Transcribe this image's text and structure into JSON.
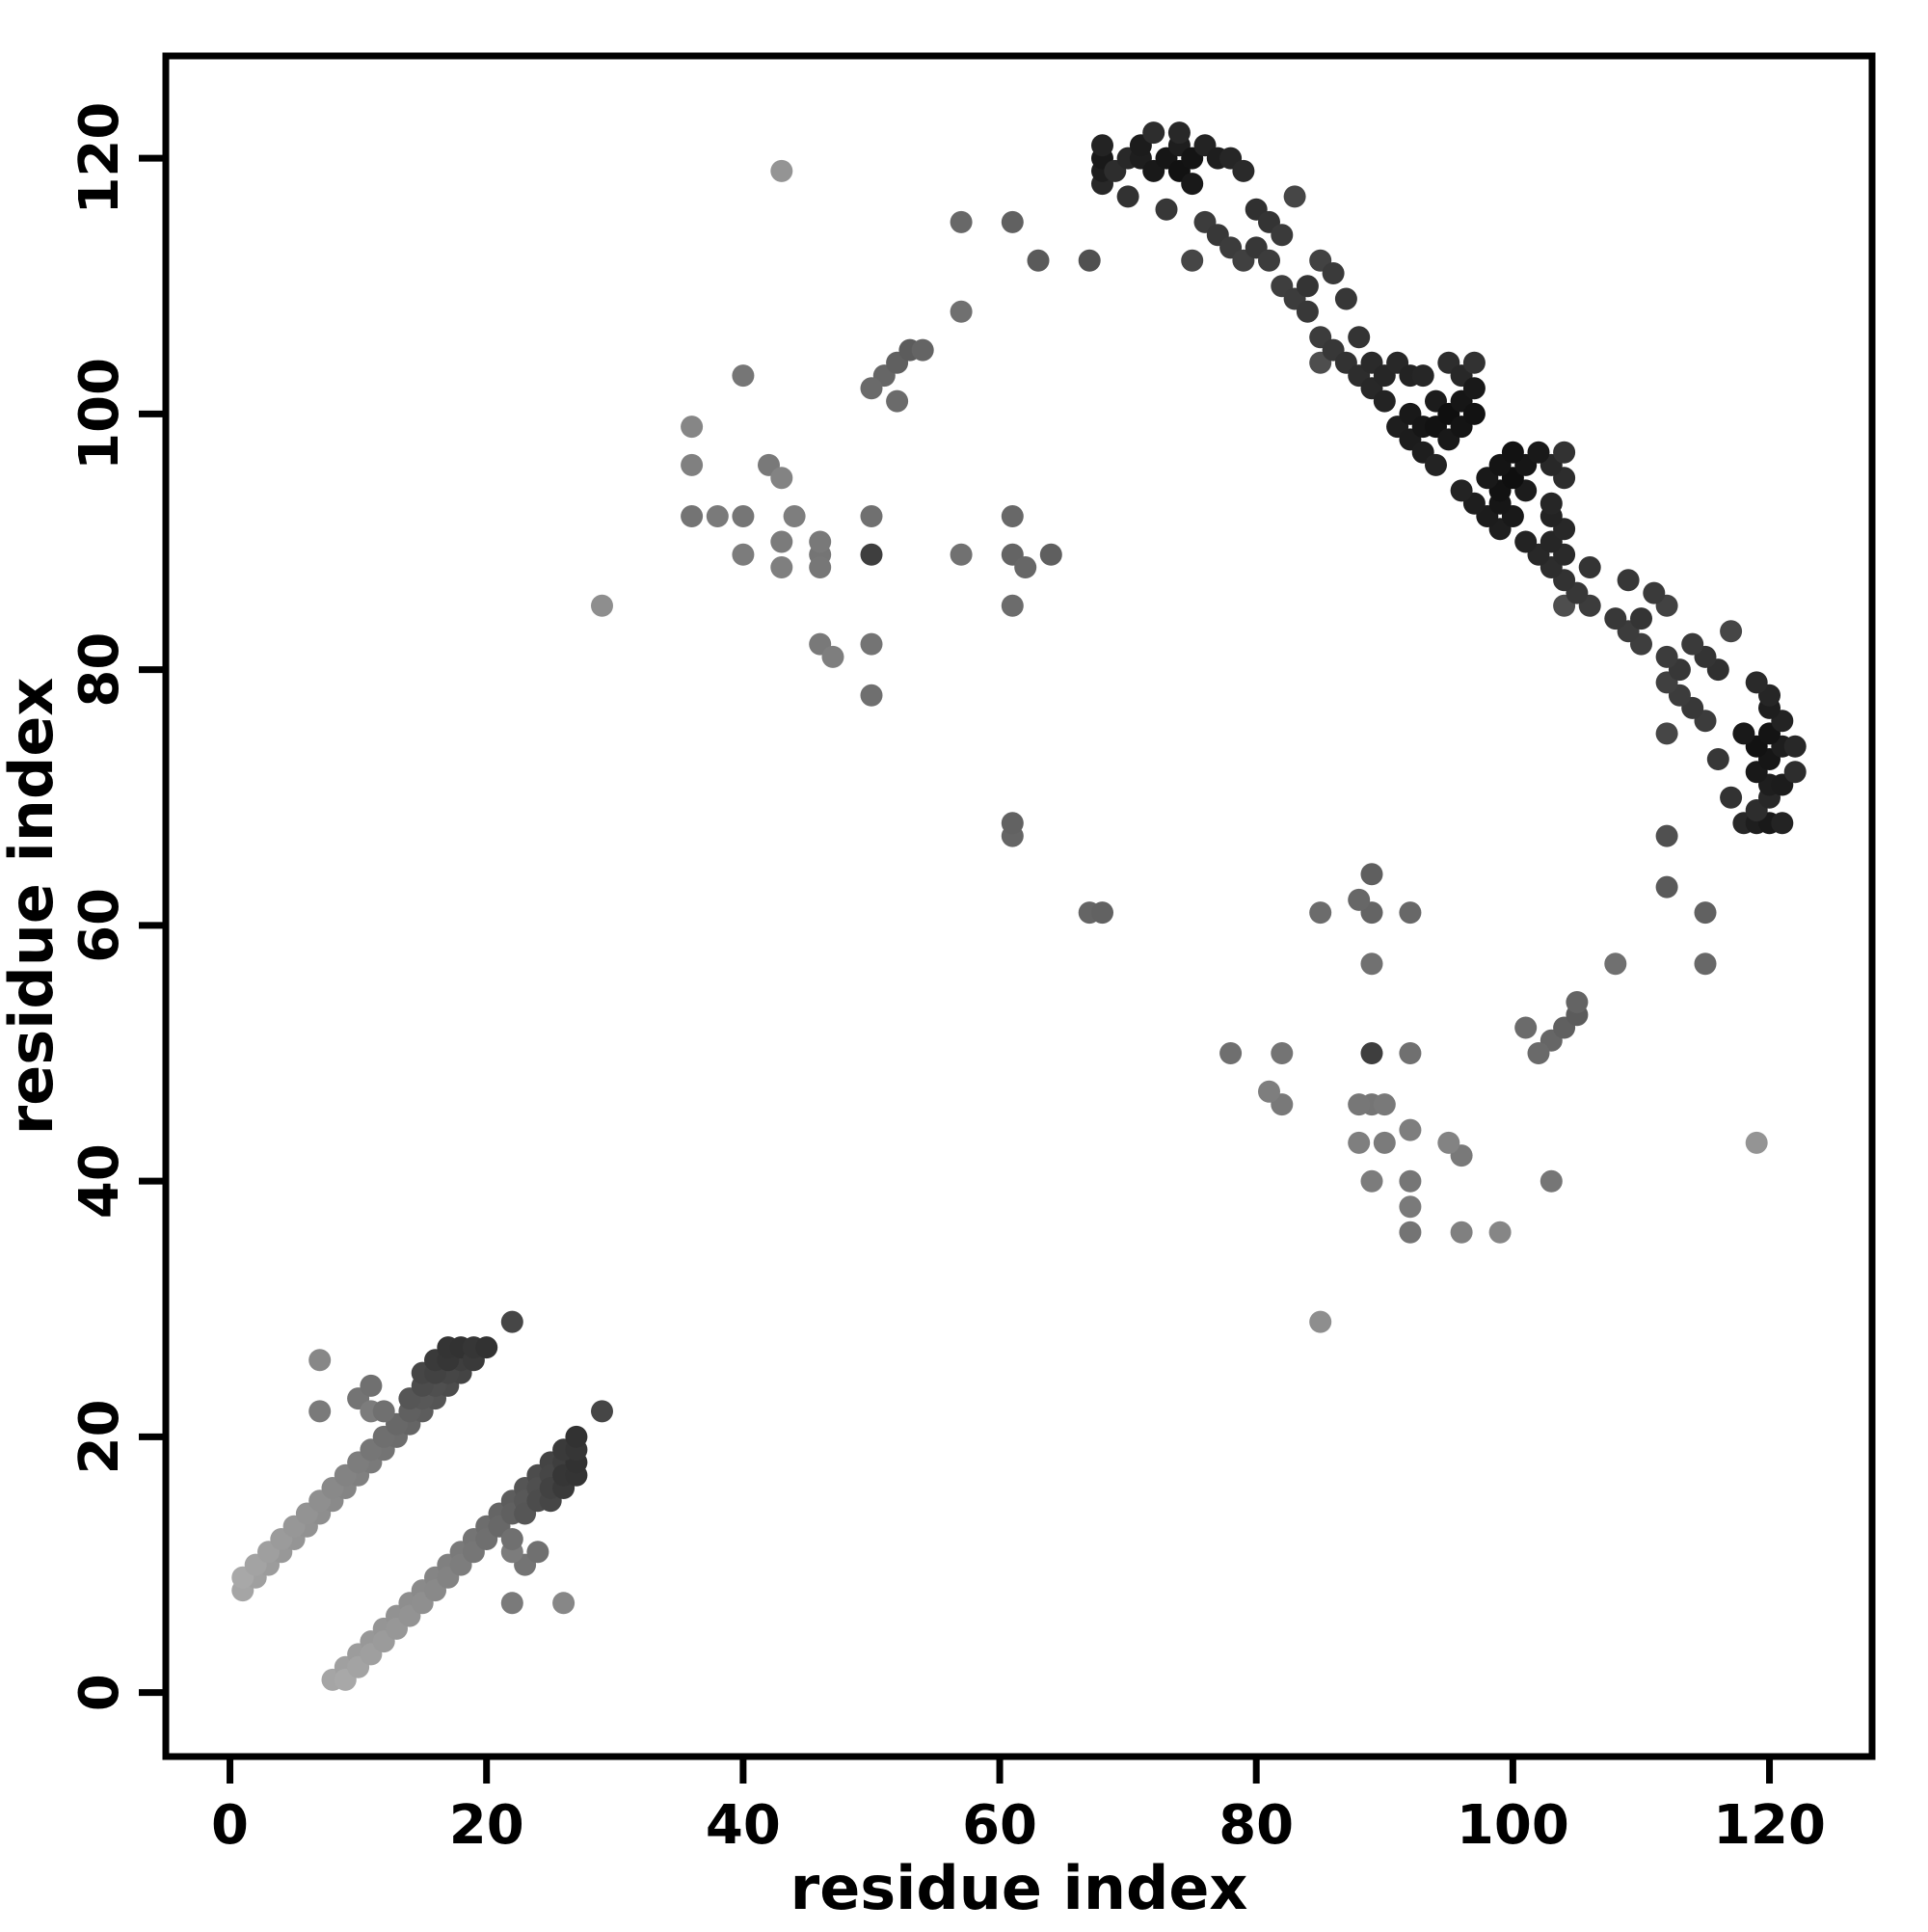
{
  "chart_data": {
    "type": "scatter",
    "title": "",
    "xlabel": "residue index",
    "ylabel": "residue index",
    "xlim": [
      -5,
      128
    ],
    "ylim": [
      -5,
      128
    ],
    "xticks": [
      0,
      20,
      40,
      60,
      80,
      100,
      120
    ],
    "yticks": [
      0,
      20,
      40,
      60,
      80,
      100,
      120
    ],
    "grid": false,
    "legend": "none",
    "frame_color": "#000000",
    "panel_bg": "#ffffff",
    "point_radius": 11.5,
    "symmetric": true,
    "note": "protein residue contact map; each contact [i,j,gray] is drawn at (i,j) and (j,i); gray is 0-255 grayscale",
    "contacts": [
      [
        1,
        8,
        165
      ],
      [
        2,
        9,
        160
      ],
      [
        3,
        10,
        156
      ],
      [
        4,
        11,
        152
      ],
      [
        5,
        12,
        149
      ],
      [
        6,
        13,
        146
      ],
      [
        7,
        14,
        142
      ],
      [
        8,
        15,
        138
      ],
      [
        9,
        16,
        133
      ],
      [
        10,
        17,
        128
      ],
      [
        11,
        18,
        122
      ],
      [
        12,
        19,
        116
      ],
      [
        13,
        20,
        109
      ],
      [
        14,
        21,
        101
      ],
      [
        15,
        22,
        93
      ],
      [
        16,
        23,
        85
      ],
      [
        17,
        24,
        76
      ],
      [
        18,
        25,
        68
      ],
      [
        1,
        9,
        168
      ],
      [
        2,
        10,
        163
      ],
      [
        3,
        11,
        159
      ],
      [
        4,
        12,
        155
      ],
      [
        5,
        13,
        151
      ],
      [
        6,
        14,
        147
      ],
      [
        7,
        15,
        143
      ],
      [
        8,
        16,
        137
      ],
      [
        9,
        17,
        131
      ],
      [
        10,
        18,
        125
      ],
      [
        11,
        19,
        118
      ],
      [
        12,
        20,
        111
      ],
      [
        13,
        21,
        104
      ],
      [
        14,
        22,
        96
      ],
      [
        15,
        23,
        88
      ],
      [
        16,
        24,
        79
      ],
      [
        17,
        25,
        70
      ],
      [
        18,
        26,
        62
      ],
      [
        14,
        23,
        86
      ],
      [
        15,
        24,
        76
      ],
      [
        15,
        25,
        70
      ],
      [
        16,
        25,
        66
      ],
      [
        16,
        26,
        58
      ],
      [
        17,
        26,
        54
      ],
      [
        17,
        27,
        52
      ],
      [
        18,
        27,
        50
      ],
      [
        19,
        26,
        58
      ],
      [
        19,
        27,
        54
      ],
      [
        20,
        27,
        50
      ],
      [
        7,
        22,
        122
      ],
      [
        7,
        26,
        135
      ],
      [
        10,
        23,
        116
      ],
      [
        11,
        24,
        112
      ],
      [
        11,
        22,
        124
      ],
      [
        12,
        22,
        112
      ],
      [
        22,
        29,
        70
      ],
      [
        29,
        85,
        142
      ],
      [
        36,
        92,
        116
      ],
      [
        38,
        92,
        122
      ],
      [
        40,
        92,
        118
      ],
      [
        44,
        92,
        126
      ],
      [
        36,
        96,
        128
      ],
      [
        42,
        96,
        121
      ],
      [
        43,
        95,
        131
      ],
      [
        36,
        99,
        134
      ],
      [
        40,
        89,
        124
      ],
      [
        46,
        89,
        117
      ],
      [
        50,
        89,
        62
      ],
      [
        50,
        92,
        112
      ],
      [
        40,
        103,
        118
      ],
      [
        43,
        119,
        148
      ],
      [
        46,
        82,
        121
      ],
      [
        47,
        81,
        126
      ],
      [
        50,
        82,
        116
      ],
      [
        50,
        78,
        111
      ],
      [
        51,
        103,
        102
      ],
      [
        52,
        104,
        96
      ],
      [
        53,
        105,
        92
      ],
      [
        43,
        90,
        123
      ],
      [
        43,
        88,
        127
      ],
      [
        46,
        88,
        119
      ],
      [
        46,
        90,
        121
      ],
      [
        57,
        115,
        104
      ],
      [
        61,
        115,
        97
      ],
      [
        57,
        108,
        112
      ],
      [
        61,
        92,
        104
      ],
      [
        61,
        89,
        100
      ],
      [
        64,
        89,
        95
      ],
      [
        61,
        85,
        108
      ],
      [
        62,
        88,
        103
      ],
      [
        61,
        67,
        101
      ],
      [
        61,
        68,
        98
      ],
      [
        63,
        112,
        90
      ],
      [
        67,
        112,
        80
      ],
      [
        57,
        89,
        113
      ],
      [
        54,
        105,
        100
      ],
      [
        50,
        102,
        106
      ],
      [
        52,
        101,
        107
      ],
      [
        68,
        118,
        40
      ],
      [
        68,
        119,
        30
      ],
      [
        68,
        120,
        25
      ],
      [
        68,
        121,
        35
      ],
      [
        69,
        119,
        45
      ],
      [
        70,
        117,
        50
      ],
      [
        70,
        120,
        40
      ],
      [
        71,
        120,
        30
      ],
      [
        71,
        121,
        28
      ],
      [
        72,
        119,
        25
      ],
      [
        72,
        122,
        45
      ],
      [
        73,
        116,
        55
      ],
      [
        73,
        120,
        22
      ],
      [
        74,
        119,
        18
      ],
      [
        74,
        121,
        30
      ],
      [
        74,
        122,
        40
      ],
      [
        75,
        112,
        70
      ],
      [
        75,
        118,
        25
      ],
      [
        75,
        120,
        20
      ],
      [
        76,
        115,
        60
      ],
      [
        76,
        121,
        35
      ],
      [
        77,
        114,
        56
      ],
      [
        77,
        120,
        30
      ],
      [
        78,
        113,
        60
      ],
      [
        78,
        120,
        38
      ],
      [
        79,
        112,
        64
      ],
      [
        79,
        119,
        42
      ],
      [
        80,
        113,
        55
      ],
      [
        80,
        116,
        48
      ],
      [
        81,
        112,
        60
      ],
      [
        81,
        115,
        52
      ],
      [
        82,
        110,
        62
      ],
      [
        82,
        114,
        58
      ],
      [
        83,
        109,
        60
      ],
      [
        83,
        117,
        70
      ],
      [
        84,
        108,
        56
      ],
      [
        84,
        110,
        52
      ],
      [
        85,
        104,
        78
      ],
      [
        85,
        106,
        60
      ],
      [
        85,
        112,
        66
      ],
      [
        86,
        105,
        55
      ],
      [
        86,
        111,
        58
      ],
      [
        87,
        104,
        50
      ],
      [
        87,
        109,
        55
      ],
      [
        88,
        103,
        45
      ],
      [
        88,
        106,
        52
      ],
      [
        89,
        102,
        40
      ],
      [
        89,
        104,
        42
      ],
      [
        90,
        101,
        35
      ],
      [
        90,
        103,
        38
      ],
      [
        91,
        99,
        30
      ],
      [
        91,
        104,
        40
      ],
      [
        92,
        98,
        28
      ],
      [
        92,
        100,
        25
      ],
      [
        92,
        103,
        35
      ],
      [
        93,
        97,
        30
      ],
      [
        93,
        99,
        22
      ],
      [
        93,
        103,
        38
      ],
      [
        94,
        96,
        35
      ],
      [
        94,
        99,
        18
      ],
      [
        94,
        101,
        28
      ],
      [
        95,
        98,
        25
      ],
      [
        95,
        100,
        15
      ],
      [
        95,
        104,
        45
      ],
      [
        96,
        99,
        20
      ],
      [
        96,
        101,
        22
      ],
      [
        96,
        103,
        40
      ],
      [
        97,
        100,
        18
      ],
      [
        97,
        102,
        25
      ],
      [
        97,
        104,
        50
      ]
    ]
  }
}
